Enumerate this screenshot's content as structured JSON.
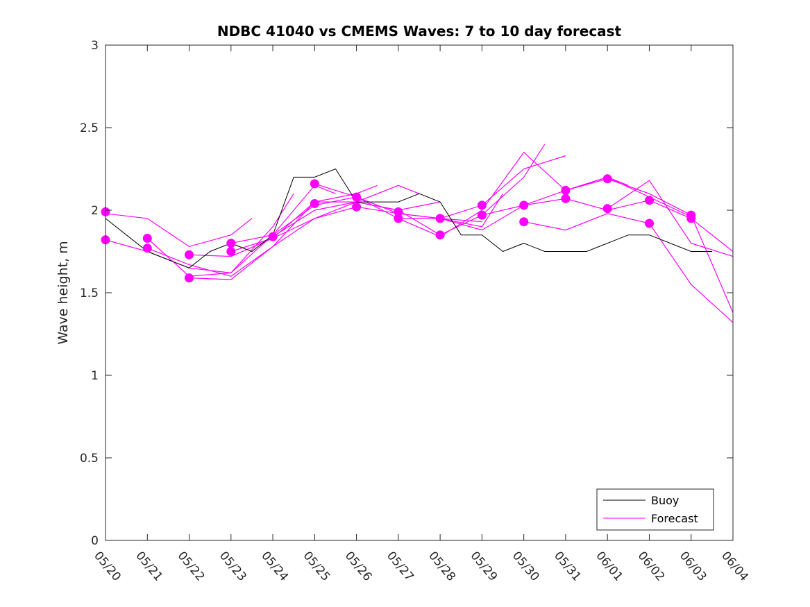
{
  "chart_data": {
    "type": "line",
    "title": "NDBC 41040 vs CMEMS Waves: 7 to 10 day forecast",
    "ylabel": "Wave height, m",
    "xlabel": "",
    "ylim": [
      0,
      3
    ],
    "xlim": [
      "05/20",
      "06/04"
    ],
    "x_ticks": [
      "05/20",
      "05/21",
      "05/22",
      "05/23",
      "05/24",
      "05/25",
      "05/26",
      "05/27",
      "05/28",
      "05/29",
      "05/30",
      "05/31",
      "06/01",
      "06/02",
      "06/03",
      "06/04"
    ],
    "y_ticks": [
      "0",
      "0.5",
      "1",
      "1.5",
      "2",
      "2.5",
      "3"
    ],
    "grid": false,
    "legend_position": "bottom-right",
    "legend": [
      {
        "label": "Buoy",
        "color": "#000000"
      },
      {
        "label": "Forecast",
        "color": "#ff00ff"
      }
    ],
    "series": [
      {
        "name": "Buoy",
        "color": "#000000",
        "x": [
          "05/20",
          "05/20 12:00",
          "05/21",
          "05/21 12:00",
          "05/22",
          "05/22 12:00",
          "05/23",
          "05/23 12:00",
          "05/24",
          "05/24 12:00",
          "05/25",
          "05/25 12:00",
          "05/26",
          "05/26 12:00",
          "05/27",
          "05/27 12:00",
          "05/28",
          "05/28 12:00",
          "05/29",
          "05/29 12:00",
          "05/30",
          "05/30 12:00",
          "05/31",
          "05/31 12:00",
          "06/01",
          "06/01 12:00",
          "06/02",
          "06/02 12:00",
          "06/03",
          "06/03 12:00"
        ],
        "y": [
          1.95,
          1.85,
          1.75,
          1.7,
          1.65,
          1.75,
          1.8,
          1.75,
          1.85,
          2.2,
          2.2,
          2.25,
          2.05,
          2.05,
          2.05,
          2.1,
          2.05,
          1.85,
          1.85,
          1.75,
          1.8,
          1.75,
          1.75,
          1.75,
          1.8,
          1.85,
          1.85,
          1.8,
          1.75,
          1.75
        ]
      },
      {
        "name": "Forecast",
        "color": "#ff00ff",
        "runs": [
          {
            "x": [
              "05/20",
              "05/21",
              "05/22",
              "05/23",
              "05/23 12:00"
            ],
            "y": [
              1.98,
              1.95,
              1.78,
              1.85,
              1.95
            ]
          },
          {
            "x": [
              "05/20",
              "05/21",
              "05/22",
              "05/23",
              "05/24",
              "05/24 12:00"
            ],
            "y": [
              1.82,
              1.75,
              1.65,
              1.62,
              1.9,
              2.1
            ]
          },
          {
            "x": [
              "05/21",
              "05/22",
              "05/23",
              "05/24",
              "05/25",
              "05/25 12:00"
            ],
            "y": [
              1.83,
              1.6,
              1.62,
              1.85,
              2.15,
              2.1
            ]
          },
          {
            "x": [
              "05/21",
              "05/22",
              "05/23",
              "05/24",
              "05/25",
              "05/26",
              "05/26 12:00"
            ],
            "y": [
              1.77,
              1.67,
              1.6,
              1.78,
              2.05,
              2.1,
              2.15
            ]
          },
          {
            "x": [
              "05/22",
              "05/23",
              "05/24",
              "05/25",
              "05/26",
              "05/27",
              "05/27 12:00"
            ],
            "y": [
              1.73,
              1.72,
              1.83,
              2.05,
              2.05,
              2.15,
              2.1
            ]
          },
          {
            "x": [
              "05/22",
              "05/23",
              "05/24",
              "05/25",
              "05/26",
              "05/27",
              "05/28"
            ],
            "y": [
              1.59,
              1.58,
              1.78,
              1.95,
              2.05,
              2.0,
              2.05
            ]
          },
          {
            "x": [
              "05/23",
              "05/24",
              "05/25",
              "05/26",
              "05/27",
              "05/28",
              "05/29"
            ],
            "y": [
              1.8,
              1.85,
              2.03,
              2.08,
              1.95,
              1.95,
              1.93
            ]
          },
          {
            "x": [
              "05/23",
              "05/24",
              "05/25",
              "05/26",
              "05/27",
              "05/28",
              "05/29",
              "05/29 12:00"
            ],
            "y": [
              1.75,
              1.83,
              1.95,
              2.02,
              1.98,
              1.95,
              1.9,
              2.1
            ]
          },
          {
            "x": [
              "05/24",
              "05/25",
              "05/26",
              "05/27",
              "05/28",
              "05/29",
              "05/30",
              "05/30 12:00"
            ],
            "y": [
              1.84,
              2.0,
              2.05,
              2.0,
              1.85,
              1.97,
              2.2,
              2.4
            ]
          },
          {
            "x": [
              "05/25",
              "05/26",
              "05/27",
              "05/28",
              "05/29",
              "05/30",
              "05/31"
            ],
            "y": [
              2.16,
              2.08,
              1.98,
              1.95,
              2.03,
              2.25,
              2.33
            ]
          },
          {
            "x": [
              "05/27",
              "05/28",
              "05/29",
              "05/30",
              "05/31",
              "06/01",
              "06/01 12:00"
            ],
            "y": [
              1.95,
              1.84,
              2.0,
              2.35,
              2.12,
              2.2,
              2.15
            ]
          },
          {
            "x": [
              "05/28",
              "05/29",
              "05/30",
              "05/31",
              "06/01",
              "06/02",
              "06/03"
            ],
            "y": [
              1.95,
              1.88,
              2.03,
              2.12,
              2.2,
              2.08,
              1.96
            ]
          },
          {
            "x": [
              "05/29",
              "05/30",
              "05/31",
              "06/01",
              "06/02",
              "06/03",
              "06/04"
            ],
            "y": [
              1.97,
              2.03,
              2.07,
              2.0,
              2.06,
              1.95,
              1.75
            ]
          },
          {
            "x": [
              "05/30",
              "05/31",
              "06/01",
              "06/02",
              "06/03",
              "06/04"
            ],
            "y": [
              1.93,
              1.88,
              1.98,
              1.92,
              1.55,
              1.32
            ]
          },
          {
            "x": [
              "05/31",
              "06/01",
              "06/02",
              "06/03",
              "06/04"
            ],
            "y": [
              2.12,
              2.19,
              2.1,
              1.97,
              1.38
            ]
          },
          {
            "x": [
              "06/01",
              "06/02",
              "06/03",
              "06/04"
            ],
            "y": [
              2.01,
              2.18,
              1.8,
              1.72
            ]
          }
        ],
        "markers": {
          "x": [
            "05/20",
            "05/20",
            "05/21",
            "05/21",
            "05/22",
            "05/22",
            "05/23",
            "05/23",
            "05/24",
            "05/25",
            "05/25",
            "05/26",
            "05/26",
            "05/27",
            "05/27",
            "05/28",
            "05/28",
            "05/29",
            "05/29",
            "05/30",
            "05/30",
            "05/31",
            "05/31",
            "06/01",
            "06/01",
            "06/02",
            "06/02",
            "06/03",
            "06/03"
          ],
          "y": [
            1.99,
            1.82,
            1.83,
            1.77,
            1.73,
            1.59,
            1.8,
            1.75,
            1.84,
            2.16,
            2.04,
            2.08,
            2.02,
            1.99,
            1.95,
            1.95,
            1.85,
            2.03,
            1.97,
            2.03,
            1.93,
            2.12,
            2.07,
            2.19,
            2.01,
            2.06,
            1.92,
            1.97,
            1.95
          ]
        }
      }
    ]
  }
}
